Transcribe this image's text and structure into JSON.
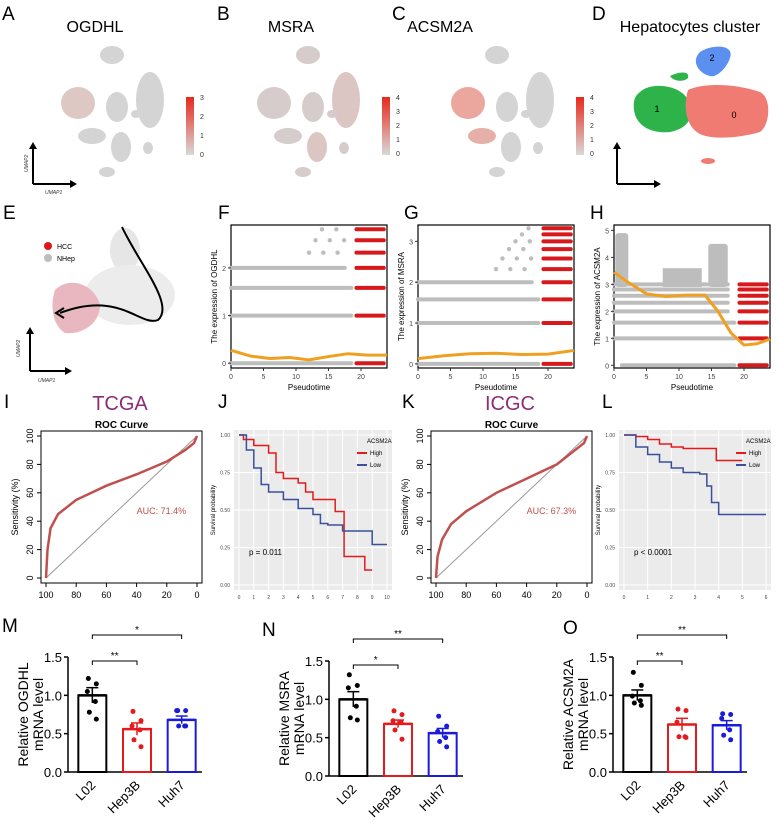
{
  "panels": {
    "A": {
      "letter": "A",
      "title": "OGDHL",
      "legend_ticks": [
        "0",
        "1",
        "2",
        "3"
      ],
      "xlabel": "UMAP1",
      "ylabel": "UMAP2"
    },
    "B": {
      "letter": "B",
      "title": "MSRA",
      "legend_ticks": [
        "0",
        "1",
        "2",
        "3",
        "4"
      ],
      "xlabel": "UMAP1",
      "ylabel": "UMAP2"
    },
    "C": {
      "letter": "C",
      "title": "ACSM2A",
      "legend_ticks": [
        "0",
        "1",
        "2",
        "3",
        "4"
      ],
      "xlabel": "UMAP1",
      "ylabel": "UMAP2"
    },
    "D": {
      "letter": "D",
      "title": "Hepatocytes cluster",
      "clusters": [
        "0",
        "1",
        "2"
      ],
      "xlabel": "UMAP1",
      "ylabel": "UMAP2"
    },
    "E": {
      "letter": "E",
      "legend": [
        {
          "label": "HCC",
          "color": "#d7191c"
        },
        {
          "label": "NHep",
          "color": "#bdbdbd"
        }
      ],
      "xlabel": "UMAP1",
      "ylabel": "UMAP2"
    },
    "F": {
      "letter": "F"
    },
    "G": {
      "letter": "G"
    },
    "H": {
      "letter": "H"
    },
    "I": {
      "letter": "I",
      "cohort": "TCGA"
    },
    "J": {
      "letter": "J"
    },
    "K": {
      "letter": "K",
      "cohort": "ICGC"
    },
    "L": {
      "letter": "L"
    },
    "M": {
      "letter": "M"
    },
    "N": {
      "letter": "N"
    },
    "O": {
      "letter": "O"
    }
  },
  "colors": {
    "hcc": "#d7191c",
    "nhep": "#bdbdbd",
    "trend": "#f0a020",
    "roc": "#c0504d",
    "km_high": "#e41a1c",
    "km_low": "#3b4f9b",
    "cohort": "#8b2d7a",
    "cluster0": "#f07b72",
    "cluster1": "#2db34a",
    "cluster2": "#5b8ff0"
  },
  "chart_data": [
    {
      "id": "F",
      "type": "scatter",
      "xlabel": "Pseudotime",
      "ylabel": "The expression of OGDHL",
      "xlim": [
        0,
        24
      ],
      "ylim": [
        -0.1,
        2.9
      ],
      "xticks": [
        "0",
        "5",
        "10",
        "15",
        "20"
      ],
      "yticks": [
        "0",
        "1",
        "2"
      ],
      "levels": [
        0,
        1,
        1.58,
        2,
        2.32,
        2.58,
        2.81
      ],
      "trend": [
        [
          0,
          0.27
        ],
        [
          3,
          0.15
        ],
        [
          6,
          0.1
        ],
        [
          9,
          0.12
        ],
        [
          12,
          0.07
        ],
        [
          15,
          0.14
        ],
        [
          18,
          0.2
        ],
        [
          21,
          0.17
        ],
        [
          24,
          0.17
        ]
      ]
    },
    {
      "id": "G",
      "type": "scatter",
      "xlabel": "Pseudotime",
      "ylabel": "The expression of MSRA",
      "xlim": [
        0,
        24
      ],
      "ylim": [
        -0.1,
        3.4
      ],
      "xticks": [
        "0",
        "5",
        "10",
        "15",
        "20"
      ],
      "yticks": [
        "0",
        "1",
        "2",
        "3"
      ],
      "levels": [
        0,
        1,
        1.58,
        2,
        2.32,
        2.58,
        2.81,
        3,
        3.17,
        3.32
      ],
      "trend": [
        [
          0,
          0.13
        ],
        [
          4,
          0.2
        ],
        [
          8,
          0.25
        ],
        [
          12,
          0.26
        ],
        [
          16,
          0.23
        ],
        [
          20,
          0.24
        ],
        [
          24,
          0.33
        ]
      ]
    },
    {
      "id": "H",
      "type": "scatter",
      "xlabel": "Pseudotime",
      "ylabel": "The expression of ACSM2A",
      "xlim": [
        0,
        24
      ],
      "ylim": [
        -0.1,
        5.2
      ],
      "xticks": [
        "0",
        "5",
        "10",
        "15",
        "20"
      ],
      "yticks": [
        "0",
        "1",
        "2",
        "3",
        "4",
        "5"
      ],
      "levels": [
        0,
        1,
        1.58,
        2,
        2.32,
        2.58,
        2.81,
        3
      ],
      "trend": [
        [
          0,
          3.45
        ],
        [
          2,
          3.1
        ],
        [
          5,
          2.65
        ],
        [
          8,
          2.55
        ],
        [
          11,
          2.6
        ],
        [
          14,
          2.6
        ],
        [
          16,
          2.0
        ],
        [
          18,
          1.2
        ],
        [
          20,
          0.75
        ],
        [
          22,
          0.8
        ],
        [
          24,
          0.97
        ]
      ]
    },
    {
      "id": "I",
      "type": "line",
      "title": "ROC Curve",
      "xlabel": "Specificity (%)",
      "ylabel": "Sensitivity (%)",
      "xticks": [
        "100",
        "80",
        "60",
        "40",
        "20",
        "0"
      ],
      "yticks": [
        "0",
        "20",
        "40",
        "60",
        "80",
        "100"
      ],
      "auc_label": "AUC: 71.4%",
      "curve": [
        [
          100,
          0
        ],
        [
          99,
          20
        ],
        [
          97,
          35
        ],
        [
          92,
          45
        ],
        [
          80,
          55
        ],
        [
          60,
          65
        ],
        [
          40,
          73
        ],
        [
          20,
          82
        ],
        [
          8,
          90
        ],
        [
          2,
          95
        ],
        [
          0,
          100
        ]
      ]
    },
    {
      "id": "J",
      "type": "line",
      "xlabel": "Overall Survival (years)",
      "ylabel": "Survival probability",
      "xticks": [
        "0",
        "1",
        "2",
        "3",
        "4",
        "5",
        "6",
        "7",
        "8",
        "9",
        "10"
      ],
      "yticks": [
        "0.00",
        "0.25",
        "0.50",
        "0.75",
        "1.00"
      ],
      "legend_title": "ACSM2A",
      "p_value": "p = 0.011",
      "series": [
        {
          "name": "High",
          "points": [
            [
              0,
              1
            ],
            [
              0.3,
              0.97
            ],
            [
              1,
              0.93
            ],
            [
              2,
              0.88
            ],
            [
              2.5,
              0.75
            ],
            [
              3,
              0.71
            ],
            [
              4,
              0.68
            ],
            [
              4.5,
              0.62
            ],
            [
              5,
              0.57
            ],
            [
              6,
              0.57
            ],
            [
              6.5,
              0.49
            ],
            [
              7,
              0.49
            ],
            [
              7.1,
              0.19
            ],
            [
              8,
              0.19
            ],
            [
              8.5,
              0.1
            ],
            [
              9,
              0.1
            ]
          ]
        },
        {
          "name": "Low",
          "points": [
            [
              0,
              1
            ],
            [
              0.5,
              0.9
            ],
            [
              1,
              0.78
            ],
            [
              1.5,
              0.67
            ],
            [
              2,
              0.62
            ],
            [
              3,
              0.57
            ],
            [
              4,
              0.51
            ],
            [
              5,
              0.47
            ],
            [
              5.5,
              0.41
            ],
            [
              6,
              0.4
            ],
            [
              7,
              0.36
            ],
            [
              8,
              0.36
            ],
            [
              8.8,
              0.36
            ],
            [
              9,
              0.27
            ],
            [
              10,
              0.27
            ]
          ]
        }
      ]
    },
    {
      "id": "K",
      "type": "line",
      "title": "ROC Curve",
      "xlabel": "Specificity (%)",
      "ylabel": "Sensitivity (%)",
      "xticks": [
        "100",
        "80",
        "60",
        "40",
        "20",
        "0"
      ],
      "yticks": [
        "0",
        "20",
        "40",
        "60",
        "80",
        "100"
      ],
      "auc_label": "AUC: 67.3%",
      "curve": [
        [
          100,
          0
        ],
        [
          99,
          15
        ],
        [
          96,
          27
        ],
        [
          90,
          38
        ],
        [
          80,
          47
        ],
        [
          60,
          60
        ],
        [
          40,
          70
        ],
        [
          20,
          80
        ],
        [
          8,
          90
        ],
        [
          2,
          95
        ],
        [
          0,
          100
        ]
      ]
    },
    {
      "id": "L",
      "type": "line",
      "xlabel": "Overall Survival (years)",
      "ylabel": "Survival probability",
      "xticks": [
        "0",
        "1",
        "2",
        "3",
        "4",
        "5",
        "6"
      ],
      "yticks": [
        "0.00",
        "0.25",
        "0.50",
        "0.75",
        "1.00"
      ],
      "legend_title": "ACSM2A",
      "p_value": "p < 0.0001",
      "series": [
        {
          "name": "High",
          "points": [
            [
              0,
              1
            ],
            [
              0.5,
              0.99
            ],
            [
              1,
              0.97
            ],
            [
              1.5,
              0.94
            ],
            [
              2,
              0.92
            ],
            [
              2.5,
              0.91
            ],
            [
              3.9,
              0.91
            ],
            [
              3.9,
              0.83
            ],
            [
              5,
              0.83
            ]
          ]
        },
        {
          "name": "Low",
          "points": [
            [
              0,
              1
            ],
            [
              0.5,
              0.92
            ],
            [
              1,
              0.87
            ],
            [
              1.5,
              0.82
            ],
            [
              2,
              0.78
            ],
            [
              2.5,
              0.75
            ],
            [
              3.2,
              0.74
            ],
            [
              3.5,
              0.66
            ],
            [
              3.7,
              0.55
            ],
            [
              4,
              0.47
            ],
            [
              6,
              0.47
            ]
          ]
        }
      ]
    },
    {
      "id": "M",
      "type": "bar",
      "ylabel": "Relative OGDHL mRNA level",
      "ylim": [
        0,
        1.5
      ],
      "yticks": [
        "0.0",
        "0.5",
        "1.0",
        "1.5"
      ],
      "categories": [
        "L02",
        "Hep3B",
        "Huh7"
      ],
      "values": [
        1.0,
        0.56,
        0.68
      ],
      "sem": [
        0.1,
        0.08,
        0.05
      ],
      "points": [
        [
          1.22,
          1.15,
          1.05,
          0.92,
          0.78,
          0.69
        ],
        [
          0.79,
          0.67,
          0.6,
          0.55,
          0.42,
          0.33
        ],
        [
          0.8,
          0.8,
          0.8,
          0.6,
          0.6,
          0.6
        ]
      ],
      "significance": [
        {
          "from": 0,
          "to": 1,
          "label": "**"
        },
        {
          "from": 0,
          "to": 2,
          "label": "*"
        }
      ]
    },
    {
      "id": "N",
      "type": "bar",
      "ylabel": "Relative MSRA mRNA level",
      "ylim": [
        0,
        1.5
      ],
      "yticks": [
        "0.0",
        "0.5",
        "1.0",
        "1.5"
      ],
      "categories": [
        "L02",
        "Hep3B",
        "Huh7"
      ],
      "values": [
        1.0,
        0.68,
        0.56
      ],
      "sem": [
        0.1,
        0.05,
        0.06
      ],
      "points": [
        [
          1.32,
          1.18,
          1.15,
          0.91,
          0.76,
          0.73
        ],
        [
          0.85,
          0.8,
          0.72,
          0.7,
          0.6,
          0.48
        ],
        [
          0.78,
          0.65,
          0.58,
          0.5,
          0.45,
          0.38
        ]
      ],
      "significance": [
        {
          "from": 0,
          "to": 1,
          "label": "*"
        },
        {
          "from": 0,
          "to": 2,
          "label": "**"
        }
      ]
    },
    {
      "id": "O",
      "type": "bar",
      "ylabel": "Relative ACSM2A mRNA level",
      "ylim": [
        0,
        1.5
      ],
      "yticks": [
        "0.0",
        "0.5",
        "1.0",
        "1.5"
      ],
      "categories": [
        "L02",
        "Hep3B",
        "Huh7"
      ],
      "values": [
        1.0,
        0.62,
        0.61
      ],
      "sem": [
        0.07,
        0.08,
        0.06
      ],
      "points": [
        [
          1.3,
          1.13,
          0.99,
          0.93,
          0.9,
          0.87
        ],
        [
          0.82,
          0.8,
          0.65,
          0.46,
          0.46,
          0.45
        ],
        [
          0.76,
          0.75,
          0.7,
          0.55,
          0.48,
          0.42
        ]
      ],
      "significance": [
        {
          "from": 0,
          "to": 1,
          "label": "**"
        },
        {
          "from": 0,
          "to": 2,
          "label": "**"
        }
      ]
    }
  ]
}
